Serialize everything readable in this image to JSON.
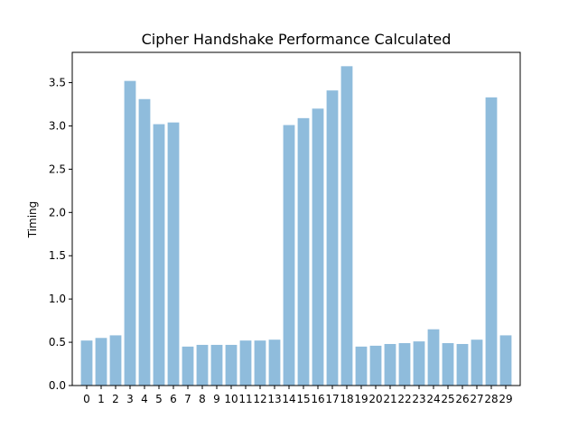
{
  "chart_data": {
    "type": "bar",
    "title": "Cipher Handshake Performance Calculated",
    "xlabel": "",
    "ylabel": "Timing",
    "categories": [
      "0",
      "1",
      "2",
      "3",
      "4",
      "5",
      "6",
      "7",
      "8",
      "9",
      "10",
      "11",
      "12",
      "13",
      "14",
      "15",
      "16",
      "17",
      "18",
      "19",
      "20",
      "21",
      "22",
      "23",
      "24",
      "25",
      "26",
      "27",
      "28",
      "29"
    ],
    "values": [
      0.52,
      0.55,
      0.58,
      3.52,
      3.31,
      3.02,
      3.04,
      0.45,
      0.47,
      0.47,
      0.47,
      0.52,
      0.52,
      0.53,
      3.01,
      3.09,
      3.2,
      3.41,
      3.69,
      0.45,
      0.46,
      0.48,
      0.49,
      0.51,
      0.65,
      0.49,
      0.48,
      0.53,
      3.33,
      0.58
    ],
    "ylim": [
      0,
      3.85
    ],
    "yticks": [
      0.0,
      0.5,
      1.0,
      1.5,
      2.0,
      2.5,
      3.0,
      3.5
    ],
    "ytick_labels": [
      "0.0",
      "0.5",
      "1.0",
      "1.5",
      "2.0",
      "2.5",
      "3.0",
      "3.5"
    ],
    "grid": false,
    "bar_color": "#8fbcdc"
  }
}
